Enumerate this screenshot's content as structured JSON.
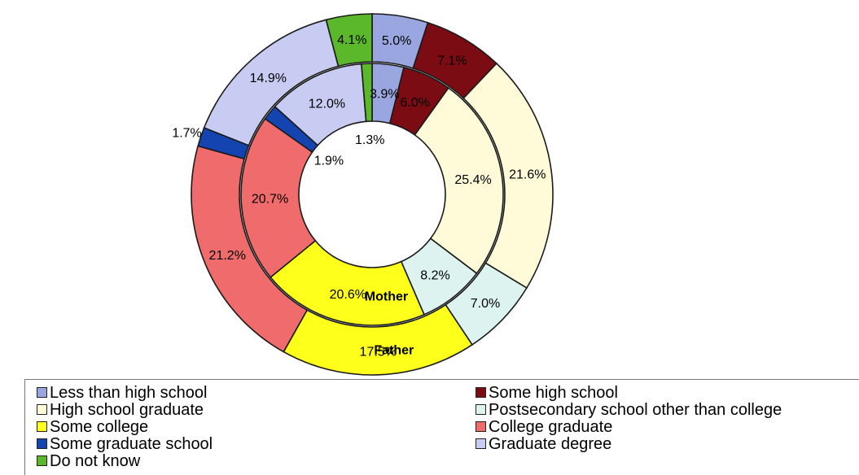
{
  "chart_data": {
    "type": "donut",
    "title": "",
    "rings": [
      {
        "name": "Mother",
        "values": [
          3.9,
          6.0,
          25.4,
          8.2,
          20.6,
          20.7,
          1.9,
          12.0,
          1.3
        ],
        "labels": [
          "3.9%",
          "6.0%",
          "25.4%",
          "8.2%",
          "20.6%",
          "20.7%",
          "1.9%",
          "12.0%",
          "1.3%"
        ]
      },
      {
        "name": "Father",
        "values": [
          5.0,
          7.1,
          21.6,
          7.0,
          17.5,
          21.2,
          1.7,
          14.9,
          4.1
        ],
        "labels": [
          "5.0%",
          "7.1%",
          "21.6%",
          "7.0%",
          "17.5%",
          "21.2%",
          "1.7%",
          "14.9%",
          "4.1%"
        ]
      }
    ],
    "categories": [
      "Less than high school",
      "Some high school",
      "High school graduate",
      "Postsecondary school other than college",
      "Some college",
      "College graduate",
      "Some graduate school",
      "Graduate degree",
      "Do not know"
    ],
    "colors": [
      "#9aa6e0",
      "#7b0c14",
      "#fffbd8",
      "#dcf3f0",
      "#ffff1c",
      "#f06b6b",
      "#1444b0",
      "#c9ccf2",
      "#5ab82a"
    ],
    "legend_position": "bottom"
  },
  "legend": {
    "items": [
      {
        "label": "Less than high school",
        "color": "#9aa6e0"
      },
      {
        "label": "Some high school",
        "color": "#7b0c14"
      },
      {
        "label": "High school graduate",
        "color": "#fffbd8"
      },
      {
        "label": "Postsecondary school other than college",
        "color": "#dcf3f0"
      },
      {
        "label": "Some college",
        "color": "#ffff1c"
      },
      {
        "label": "College graduate",
        "color": "#f06b6b"
      },
      {
        "label": "Some graduate school",
        "color": "#1444b0"
      },
      {
        "label": "Graduate degree",
        "color": "#c9ccf2"
      },
      {
        "label": "Do not know",
        "color": "#5ab82a"
      }
    ]
  }
}
